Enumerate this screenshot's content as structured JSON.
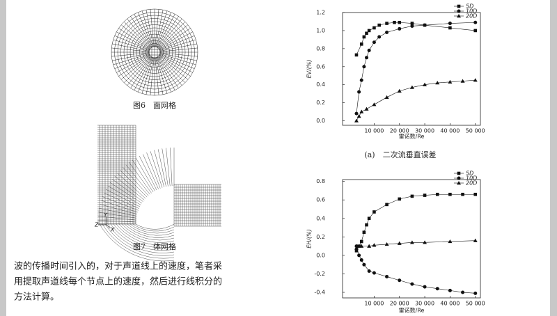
{
  "figure6": {
    "caption": "图6　面网格"
  },
  "figure7": {
    "caption": "图7　体网格",
    "axes": [
      "Y",
      "Z",
      "X"
    ]
  },
  "paragraph": {
    "lines": [
      "波的传播时间引入的，对于声道线上的速度，笔者采",
      "用提取声道线每个节点上的速度，然后进行线积分的",
      "方法计算。"
    ]
  },
  "chart_data": [
    {
      "type": "line",
      "caption": "(a)　二次流垂直误差",
      "x_label": "雷诺数/Re",
      "y_label": "EV/(%)",
      "legend": "top-right",
      "xlim": [
        -2500,
        52000
      ],
      "ylim": [
        -0.05,
        1.2
      ],
      "xticks": [
        {
          "value": 10000,
          "label": "10 000"
        },
        {
          "value": 20000,
          "label": "20 000"
        },
        {
          "value": 30000,
          "label": "30 000"
        },
        {
          "value": 40000,
          "label": "40 000"
        },
        {
          "value": 50000,
          "label": "50 000"
        }
      ],
      "yticks": [
        {
          "value": 0,
          "label": "0.0"
        },
        0.2,
        0.4,
        0.6,
        0.8,
        {
          "value": 1,
          "label": "1.0"
        },
        1.2
      ],
      "series": [
        {
          "name": "5D",
          "color": "#111111",
          "marker": "square",
          "x": [
            3000,
            5000,
            6000,
            7000,
            8000,
            10000,
            12000,
            15000,
            18000,
            20000,
            25000,
            30000,
            40000,
            50000
          ],
          "values": [
            0.73,
            0.85,
            0.93,
            0.97,
            1.0,
            1.03,
            1.06,
            1.08,
            1.09,
            1.09,
            1.08,
            1.06,
            1.03,
            1.0
          ]
        },
        {
          "name": "10D",
          "color": "#111111",
          "marker": "circle",
          "x": [
            3000,
            4000,
            5000,
            6000,
            7000,
            8000,
            10000,
            12000,
            15000,
            20000,
            25000,
            30000,
            40000,
            50000
          ],
          "values": [
            0.08,
            0.32,
            0.45,
            0.6,
            0.7,
            0.78,
            0.87,
            0.93,
            0.98,
            1.02,
            1.05,
            1.06,
            1.08,
            1.09
          ]
        },
        {
          "name": "20D",
          "color": "#111111",
          "marker": "triangle",
          "x": [
            3000,
            4000,
            5000,
            7000,
            10000,
            15000,
            20000,
            25000,
            30000,
            35000,
            40000,
            45000,
            50000
          ],
          "values": [
            0.0,
            0.05,
            0.1,
            0.13,
            0.18,
            0.26,
            0.33,
            0.37,
            0.4,
            0.42,
            0.43,
            0.44,
            0.45
          ]
        }
      ]
    },
    {
      "type": "line",
      "x_label": "雷诺数/Re",
      "y_label": "EH/(%)",
      "legend": "top-right",
      "xlim": [
        -2500,
        52000
      ],
      "ylim": [
        -0.46,
        0.82
      ],
      "xticks": [
        {
          "value": 10000,
          "label": "10 000"
        },
        {
          "value": 20000,
          "label": "20 000"
        },
        {
          "value": 30000,
          "label": "30 000"
        },
        {
          "value": 40000,
          "label": "40 000"
        },
        {
          "value": 50000,
          "label": "50 000"
        }
      ],
      "yticks": [
        -0.4,
        -0.2,
        {
          "value": 0,
          "label": "0.0"
        },
        0.2,
        0.4,
        0.6,
        0.8
      ],
      "series": [
        {
          "name": "5D",
          "color": "#111111",
          "marker": "square",
          "x": [
            3000,
            4000,
            5000,
            6000,
            7000,
            8000,
            10000,
            15000,
            20000,
            25000,
            30000,
            35000,
            40000,
            45000,
            50000
          ],
          "values": [
            0.05,
            0.1,
            0.15,
            0.25,
            0.33,
            0.4,
            0.47,
            0.55,
            0.61,
            0.64,
            0.65,
            0.66,
            0.66,
            0.66,
            0.66
          ]
        },
        {
          "name": "10D",
          "color": "#111111",
          "marker": "circle",
          "x": [
            3000,
            4000,
            5000,
            6000,
            8000,
            10000,
            15000,
            20000,
            25000,
            30000,
            35000,
            40000,
            45000,
            50000
          ],
          "values": [
            0.1,
            0.0,
            -0.05,
            -0.1,
            -0.17,
            -0.19,
            -0.23,
            -0.27,
            -0.31,
            -0.34,
            -0.36,
            -0.38,
            -0.4,
            -0.41
          ]
        },
        {
          "name": "20D",
          "color": "#111111",
          "marker": "triangle",
          "x": [
            3000,
            5000,
            8000,
            10000,
            15000,
            20000,
            25000,
            30000,
            40000,
            50000
          ],
          "values": [
            0.08,
            0.1,
            0.1,
            0.11,
            0.12,
            0.13,
            0.14,
            0.14,
            0.15,
            0.16
          ]
        }
      ]
    }
  ]
}
